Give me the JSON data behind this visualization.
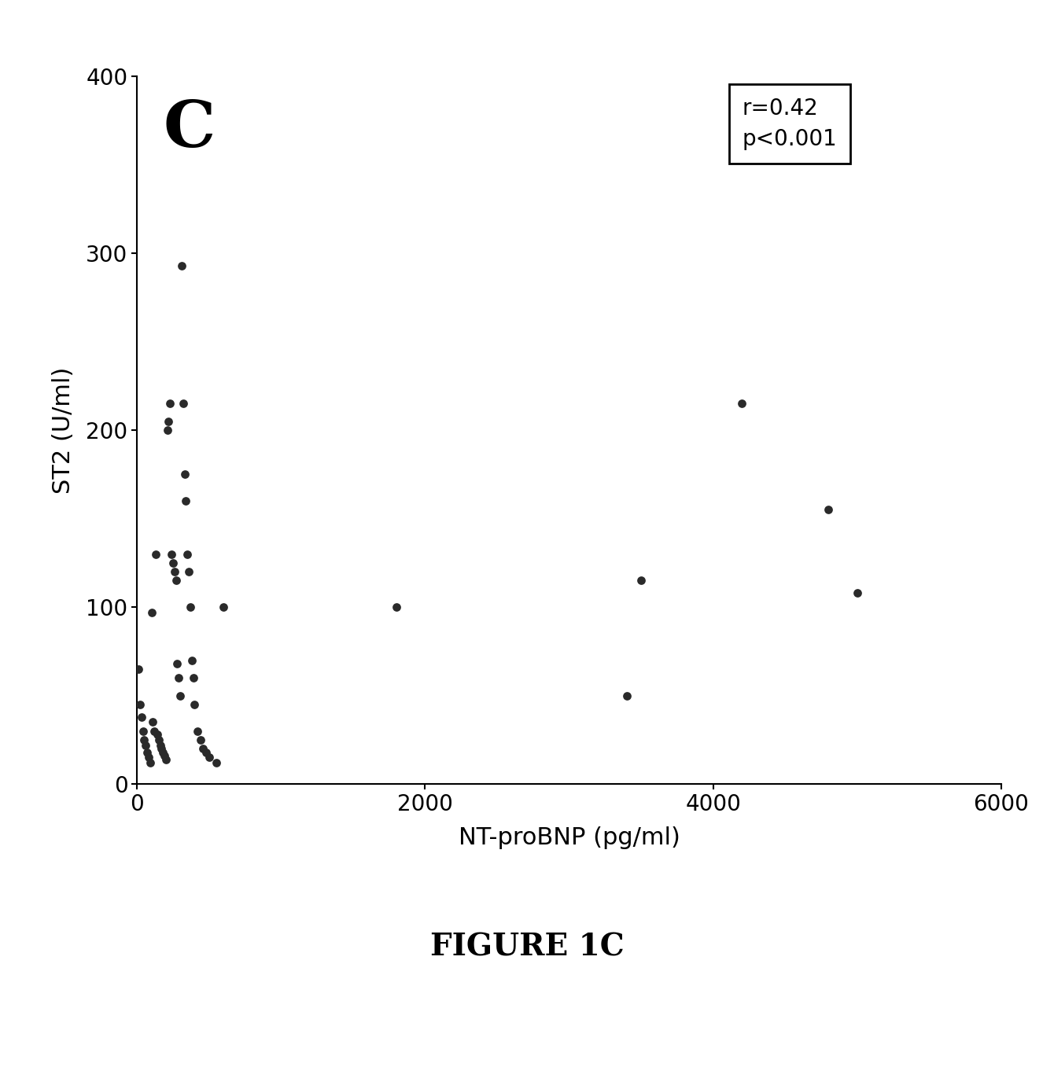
{
  "x_data": [
    10,
    20,
    30,
    40,
    50,
    60,
    70,
    80,
    90,
    100,
    110,
    120,
    130,
    140,
    150,
    160,
    170,
    180,
    190,
    200,
    210,
    220,
    230,
    240,
    250,
    260,
    270,
    280,
    290,
    300,
    310,
    320,
    330,
    340,
    350,
    360,
    370,
    380,
    390,
    400,
    420,
    440,
    460,
    480,
    500,
    550,
    600,
    1800,
    3400,
    3500,
    4200,
    4800,
    5000
  ],
  "y_data": [
    65,
    45,
    38,
    30,
    25,
    22,
    18,
    15,
    12,
    97,
    35,
    30,
    130,
    28,
    25,
    22,
    20,
    18,
    16,
    14,
    200,
    205,
    215,
    130,
    125,
    120,
    115,
    68,
    60,
    50,
    293,
    215,
    175,
    160,
    130,
    120,
    100,
    70,
    60,
    45,
    30,
    25,
    20,
    18,
    15,
    12,
    100,
    100,
    50,
    115,
    215,
    155,
    108
  ],
  "xlim": [
    0,
    6000
  ],
  "ylim": [
    0,
    400
  ],
  "xticks": [
    0,
    2000,
    4000,
    6000
  ],
  "yticks": [
    0,
    100,
    200,
    300,
    400
  ],
  "xlabel": "NT-proBNP (pg/ml)",
  "ylabel": "ST2 (U/ml)",
  "annotation_line1": "r=0.42",
  "annotation_line2": "p<0.001",
  "panel_label": "C",
  "figure_title_upper": "FIGURE 1C",
  "marker_color": "#2a2a2a",
  "marker_size": 60,
  "background_color": "#ffffff"
}
